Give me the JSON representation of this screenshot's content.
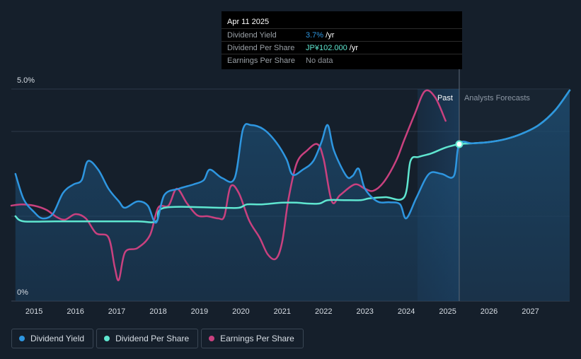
{
  "tooltip": {
    "date": "Apr 11 2025",
    "rows": [
      {
        "label": "Dividend Yield",
        "value": "3.7%",
        "unit": " /yr",
        "color": "#2e96e0"
      },
      {
        "label": "Dividend Per Share",
        "value": "JP¥102.000",
        "unit": " /yr",
        "color": "#5fe6d0"
      },
      {
        "label": "Earnings Per Share",
        "value": "No data",
        "unit": "",
        "color": "#8f949a"
      }
    ]
  },
  "legend": [
    {
      "label": "Dividend Yield",
      "color": "#2e96e0"
    },
    {
      "label": "Dividend Per Share",
      "color": "#5fe6d0"
    },
    {
      "label": "Earnings Per Share",
      "color": "#c9417f"
    }
  ],
  "chart_data": {
    "type": "line",
    "title": "",
    "xlabel": "",
    "ylabel": "",
    "ylim": [
      0,
      5
    ],
    "xlim": [
      2014.45,
      2027.95
    ],
    "y_tick_labels": [
      "5.0%",
      "0%"
    ],
    "x_ticks": [
      2015,
      2016,
      2017,
      2018,
      2019,
      2020,
      2021,
      2022,
      2023,
      2024,
      2025,
      2026,
      2027
    ],
    "past_label": "Past",
    "forecast_label": "Analysts Forecasts",
    "past_end_x": 2025.28,
    "forecast_band_start_x": 2024.27,
    "series": [
      {
        "name": "Dividend Yield",
        "color": "#2e96e0",
        "area": true,
        "points": [
          [
            2014.55,
            3.0
          ],
          [
            2014.75,
            2.4
          ],
          [
            2015.0,
            2.1
          ],
          [
            2015.2,
            1.95
          ],
          [
            2015.45,
            2.05
          ],
          [
            2015.7,
            2.55
          ],
          [
            2015.95,
            2.75
          ],
          [
            2016.15,
            2.85
          ],
          [
            2016.3,
            3.3
          ],
          [
            2016.55,
            3.1
          ],
          [
            2016.8,
            2.65
          ],
          [
            2017.05,
            2.35
          ],
          [
            2017.2,
            2.2
          ],
          [
            2017.5,
            2.35
          ],
          [
            2017.75,
            2.25
          ],
          [
            2017.95,
            1.85
          ],
          [
            2018.15,
            2.5
          ],
          [
            2018.5,
            2.65
          ],
          [
            2018.85,
            2.75
          ],
          [
            2019.1,
            2.85
          ],
          [
            2019.25,
            3.1
          ],
          [
            2019.55,
            2.9
          ],
          [
            2019.85,
            2.9
          ],
          [
            2020.05,
            4.05
          ],
          [
            2020.25,
            4.15
          ],
          [
            2020.55,
            4.05
          ],
          [
            2020.85,
            3.75
          ],
          [
            2021.1,
            3.35
          ],
          [
            2021.25,
            2.98
          ],
          [
            2021.5,
            3.1
          ],
          [
            2021.75,
            3.3
          ],
          [
            2021.95,
            3.75
          ],
          [
            2022.1,
            4.15
          ],
          [
            2022.25,
            3.55
          ],
          [
            2022.55,
            2.95
          ],
          [
            2022.7,
            2.95
          ],
          [
            2022.85,
            3.12
          ],
          [
            2023.0,
            2.65
          ],
          [
            2023.3,
            2.35
          ],
          [
            2023.6,
            2.33
          ],
          [
            2023.85,
            2.28
          ],
          [
            2024.0,
            1.95
          ],
          [
            2024.25,
            2.45
          ],
          [
            2024.55,
            3.0
          ],
          [
            2024.85,
            3.0
          ],
          [
            2025.15,
            2.95
          ],
          [
            2025.28,
            3.7
          ],
          [
            2025.6,
            3.72
          ],
          [
            2026.0,
            3.75
          ],
          [
            2026.4,
            3.82
          ],
          [
            2026.8,
            3.95
          ],
          [
            2027.2,
            4.15
          ],
          [
            2027.6,
            4.5
          ],
          [
            2027.95,
            4.97
          ]
        ]
      },
      {
        "name": "Dividend Per Share",
        "color": "#5fe6d0",
        "area": false,
        "points": [
          [
            2014.55,
            2.0
          ],
          [
            2014.75,
            1.88
          ],
          [
            2015.5,
            1.88
          ],
          [
            2016.5,
            1.88
          ],
          [
            2017.5,
            1.88
          ],
          [
            2017.95,
            1.88
          ],
          [
            2018.15,
            2.2
          ],
          [
            2019.5,
            2.2
          ],
          [
            2019.95,
            2.2
          ],
          [
            2020.15,
            2.28
          ],
          [
            2020.5,
            2.28
          ],
          [
            2021.0,
            2.32
          ],
          [
            2021.35,
            2.32
          ],
          [
            2021.6,
            2.3
          ],
          [
            2021.9,
            2.3
          ],
          [
            2022.1,
            2.38
          ],
          [
            2022.5,
            2.38
          ],
          [
            2022.9,
            2.38
          ],
          [
            2023.1,
            2.42
          ],
          [
            2023.5,
            2.45
          ],
          [
            2023.95,
            2.45
          ],
          [
            2024.1,
            3.3
          ],
          [
            2024.3,
            3.4
          ],
          [
            2024.6,
            3.48
          ],
          [
            2024.95,
            3.62
          ],
          [
            2025.28,
            3.7
          ],
          [
            2025.6,
            3.72
          ],
          [
            2026.0,
            3.75
          ],
          [
            2026.4,
            3.82
          ],
          [
            2026.8,
            3.95
          ],
          [
            2027.2,
            4.15
          ],
          [
            2027.6,
            4.5
          ],
          [
            2027.95,
            4.97
          ]
        ]
      },
      {
        "name": "Earnings Per Share",
        "color": "#c9417f",
        "area": false,
        "points": [
          [
            2014.45,
            2.25
          ],
          [
            2014.7,
            2.28
          ],
          [
            2015.0,
            2.25
          ],
          [
            2015.3,
            2.15
          ],
          [
            2015.55,
            1.98
          ],
          [
            2015.75,
            1.92
          ],
          [
            2016.0,
            2.05
          ],
          [
            2016.25,
            1.95
          ],
          [
            2016.5,
            1.6
          ],
          [
            2016.8,
            1.5
          ],
          [
            2016.95,
            0.8
          ],
          [
            2017.05,
            0.5
          ],
          [
            2017.2,
            1.15
          ],
          [
            2017.5,
            1.25
          ],
          [
            2017.8,
            1.55
          ],
          [
            2018.0,
            2.2
          ],
          [
            2018.25,
            2.25
          ],
          [
            2018.45,
            2.65
          ],
          [
            2018.7,
            2.3
          ],
          [
            2018.95,
            2.02
          ],
          [
            2019.2,
            2.0
          ],
          [
            2019.45,
            1.95
          ],
          [
            2019.6,
            2.0
          ],
          [
            2019.75,
            2.7
          ],
          [
            2019.95,
            2.55
          ],
          [
            2020.2,
            1.9
          ],
          [
            2020.45,
            1.5
          ],
          [
            2020.65,
            1.1
          ],
          [
            2020.85,
            1.0
          ],
          [
            2021.0,
            1.4
          ],
          [
            2021.15,
            2.4
          ],
          [
            2021.35,
            3.25
          ],
          [
            2021.6,
            3.55
          ],
          [
            2021.85,
            3.7
          ],
          [
            2022.0,
            3.35
          ],
          [
            2022.2,
            2.35
          ],
          [
            2022.4,
            2.5
          ],
          [
            2022.75,
            2.75
          ],
          [
            2023.0,
            2.65
          ],
          [
            2023.2,
            2.6
          ],
          [
            2023.45,
            2.8
          ],
          [
            2023.75,
            3.3
          ],
          [
            2023.95,
            3.8
          ],
          [
            2024.2,
            4.4
          ],
          [
            2024.45,
            4.95
          ],
          [
            2024.7,
            4.8
          ],
          [
            2024.95,
            4.25
          ]
        ]
      }
    ]
  }
}
